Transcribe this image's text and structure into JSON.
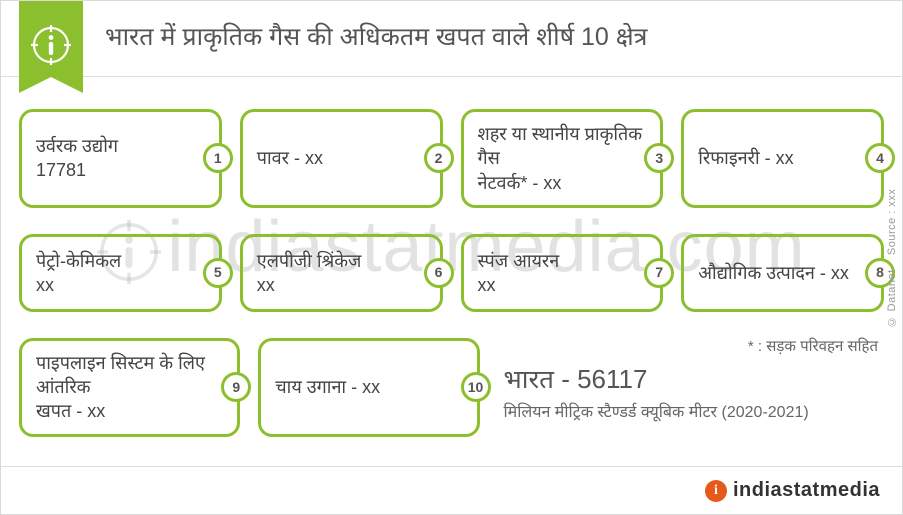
{
  "accent": "#8bbf2e",
  "title": "भारत में प्राकृतिक गैस की अधिकतम खपत वाले शीर्ष 10 क्षेत्र",
  "boxes": [
    {
      "n": 1,
      "label": "उर्वरक उद्योग",
      "value": "17781"
    },
    {
      "n": 2,
      "label": "पावर",
      "value": "xx"
    },
    {
      "n": 3,
      "label": "शहर या स्थानीय प्राकृतिक गैस नेटवर्क*",
      "value": "xx"
    },
    {
      "n": 4,
      "label": "रिफाइनरी",
      "value": "xx"
    },
    {
      "n": 5,
      "label": "पेट्रो-केमिकल",
      "value": "xx"
    },
    {
      "n": 6,
      "label": "एलपीजी श्रिंकेज",
      "value": "xx"
    },
    {
      "n": 7,
      "label": "स्पंज आयरन",
      "value": "xx"
    },
    {
      "n": 8,
      "label": "औद्योगिक उत्पादन",
      "value": "xx"
    },
    {
      "n": 9,
      "label": "पाइपलाइन सिस्टम के लिए आंतरिक खपत",
      "value": "xx"
    },
    {
      "n": 10,
      "label": "चाय उगाना",
      "value": "xx"
    }
  ],
  "note": "* : सड़क परिवहन सहित",
  "total_label": "भारत",
  "total_value": "56117",
  "unit": "मिलियन मीट्रिक स्टैण्डर्ड क्यूबिक मीटर (2020-2021)",
  "footer_brand": "indiastatmedia",
  "watermark": "indiastatmedia.com",
  "source_prefix": "Source : ",
  "source_value": "xxx",
  "copyright": "© Datanet"
}
